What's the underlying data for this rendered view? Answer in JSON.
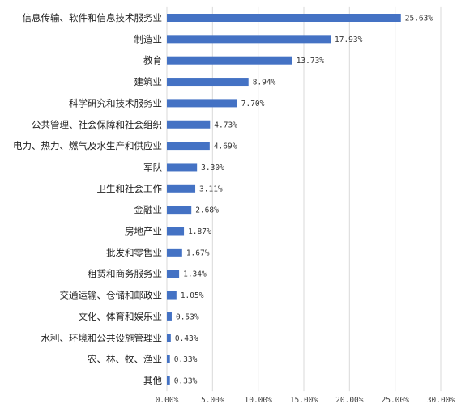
{
  "chart_data": {
    "type": "bar",
    "orientation": "horizontal",
    "categories": [
      "信息传输、软件和信息技术服务业",
      "制造业",
      "教育",
      "建筑业",
      "科学研究和技术服务业",
      "公共管理、社会保障和社会组织",
      "电力、热力、燃气及水生产和供应业",
      "军队",
      "卫生和社会工作",
      "金融业",
      "房地产业",
      "批发和零售业",
      "租赁和商务服务业",
      "交通运输、仓储和邮政业",
      "文化、体育和娱乐业",
      "水利、环境和公共设施管理业",
      "农、林、牧、渔业",
      "其他"
    ],
    "values": [
      25.63,
      17.93,
      13.73,
      8.94,
      7.7,
      4.73,
      4.69,
      3.3,
      3.11,
      2.68,
      1.87,
      1.67,
      1.34,
      1.05,
      0.53,
      0.43,
      0.33,
      0.33
    ],
    "value_labels": [
      "25.63%",
      "17.93%",
      "13.73%",
      "8.94%",
      "7.70%",
      "4.73%",
      "4.69%",
      "3.30%",
      "3.11%",
      "2.68%",
      "1.87%",
      "1.67%",
      "1.34%",
      "1.05%",
      "0.53%",
      "0.43%",
      "0.33%",
      "0.33%"
    ],
    "xticks": [
      "0.00%",
      "5.00%",
      "10.00%",
      "15.00%",
      "20.00%",
      "25.00%",
      "30.00%"
    ],
    "xlim": [
      0,
      30
    ],
    "title": "",
    "xlabel": "",
    "ylabel": "",
    "grid": "vertical",
    "legend": "none",
    "bar_color": "#4472C4",
    "grid_color": "#d9d9d9"
  }
}
